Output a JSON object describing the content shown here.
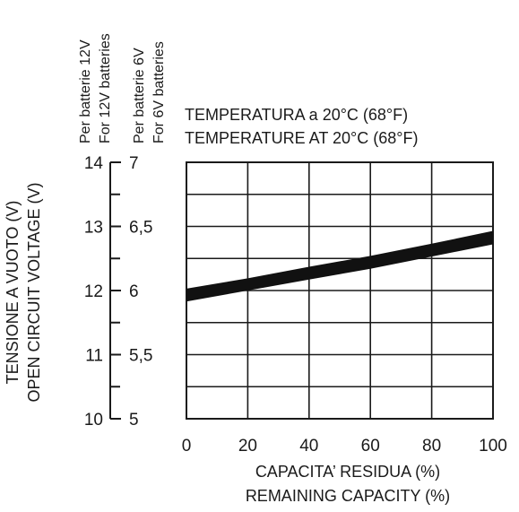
{
  "chart_data": {
    "type": "line",
    "title_lines": [
      "TEMPERATURA a 20°C (68°F)",
      "TEMPERATURE AT 20°C (68°F)"
    ],
    "xlabel_lines": [
      "CAPACITA’ RESIDUA (%)",
      "REMAINING CAPACITY (%)"
    ],
    "ylabel_lines": [
      "TENSIONE A  VUOTO (V)",
      "OPEN CIRCUIT VOLTAGE (V)"
    ],
    "y_axis_12v_label_lines": [
      "Per batterie 12V",
      "For 12V batteries"
    ],
    "y_axis_6v_label_lines": [
      "Per batterie 6V",
      "For 6V batteries"
    ],
    "xlim": [
      0,
      100
    ],
    "ylim": [
      10,
      14
    ],
    "x_ticks": [
      "0",
      "20",
      "40",
      "60",
      "80",
      "100"
    ],
    "x_tick_values": [
      0,
      20,
      40,
      60,
      80,
      100
    ],
    "y_ticks_12v": [
      "10",
      "11",
      "12",
      "13",
      "14"
    ],
    "y_tick_values_12v": [
      10,
      11,
      12,
      13,
      14
    ],
    "y_ticks_6v": [
      "5",
      "5,5",
      "6",
      "6,5",
      "7"
    ],
    "y_tick_values_6v": [
      5,
      5.5,
      6,
      6.5,
      7
    ],
    "x_grid_values": [
      20,
      40,
      60,
      80
    ],
    "y_grid_values": [
      10.5,
      11,
      11.5,
      12,
      12.5,
      13,
      13.5
    ],
    "grid": true,
    "series": [
      {
        "x": [
          0,
          20,
          40,
          60,
          80,
          100
        ],
        "y_upper": [
          12.03,
          12.19,
          12.37,
          12.54,
          12.73,
          12.93
        ],
        "y_lower": [
          11.83,
          12.0,
          12.17,
          12.34,
          12.53,
          12.72
        ]
      }
    ]
  }
}
